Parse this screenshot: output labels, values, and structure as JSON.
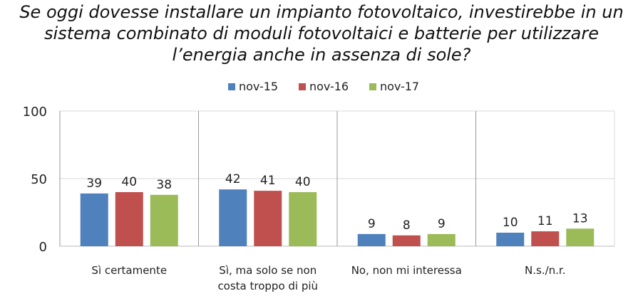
{
  "title_lines": [
    "Se oggi dovesse installare un impianto fotovoltaico, investirebbe in un",
    "sistema combinato di moduli fotovoltaici e batterie per utilizzare",
    "l’energia anche in assenza di sole?"
  ],
  "chart_data": {
    "type": "bar",
    "title": "Se oggi dovesse installare un impianto fotovoltaico, investirebbe in un sistema combinato di moduli fotovoltaici e batterie per utilizzare l’energia anche in assenza di sole?",
    "categories": [
      [
        "Sì certamente"
      ],
      [
        "Sì, ma solo se non",
        "costa troppo di più"
      ],
      [
        "No, non mi interessa"
      ],
      [
        "N.s./n.r."
      ]
    ],
    "series": [
      {
        "name": "nov-15",
        "color": "#4f81bd",
        "values": [
          39,
          42,
          9,
          10
        ]
      },
      {
        "name": "nov-16",
        "color": "#c0504d",
        "values": [
          40,
          41,
          8,
          11
        ]
      },
      {
        "name": "nov-17",
        "color": "#9bbb59",
        "values": [
          38,
          40,
          9,
          13
        ]
      }
    ],
    "yticks": [
      "0",
      "50",
      "100"
    ],
    "ylim": [
      0,
      100
    ],
    "legend": "top",
    "grid": true
  }
}
